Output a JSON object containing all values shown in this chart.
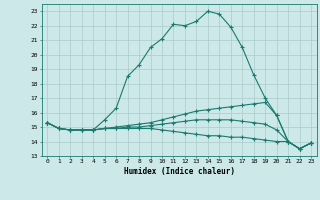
{
  "xlabel": "Humidex (Indice chaleur)",
  "bg_color": "#cce8e8",
  "grid_color": "#aacccc",
  "line_color": "#1a7a6e",
  "xlim": [
    -0.5,
    23.5
  ],
  "ylim": [
    13,
    23.5
  ],
  "yticks": [
    13,
    14,
    15,
    16,
    17,
    18,
    19,
    20,
    21,
    22,
    23
  ],
  "xticks": [
    0,
    1,
    2,
    3,
    4,
    5,
    6,
    7,
    8,
    9,
    10,
    11,
    12,
    13,
    14,
    15,
    16,
    17,
    18,
    19,
    20,
    21,
    22,
    23
  ],
  "xtick_labels": [
    "0",
    "1",
    "2",
    "3",
    "4",
    "5",
    "6",
    "7",
    "8",
    "9",
    "10",
    "11",
    "12",
    "13",
    "14",
    "15",
    "16",
    "17",
    "18",
    "19",
    "20",
    "21",
    "22",
    "23"
  ],
  "series": [
    [
      15.3,
      14.9,
      14.8,
      14.8,
      14.8,
      15.5,
      16.3,
      18.5,
      19.3,
      20.5,
      21.1,
      22.1,
      22.0,
      22.3,
      23.0,
      22.8,
      21.9,
      20.5,
      18.6,
      17.0,
      15.8,
      14.0,
      13.5,
      13.9
    ],
    [
      15.3,
      14.9,
      14.8,
      14.8,
      14.8,
      14.9,
      15.0,
      15.1,
      15.2,
      15.3,
      15.5,
      15.7,
      15.9,
      16.1,
      16.2,
      16.3,
      16.4,
      16.5,
      16.6,
      16.7,
      15.8,
      14.0,
      13.5,
      13.9
    ],
    [
      15.3,
      14.9,
      14.8,
      14.8,
      14.8,
      14.9,
      14.9,
      15.0,
      15.0,
      15.1,
      15.2,
      15.3,
      15.4,
      15.5,
      15.5,
      15.5,
      15.5,
      15.4,
      15.3,
      15.2,
      14.8,
      14.0,
      13.5,
      13.9
    ],
    [
      15.3,
      14.9,
      14.8,
      14.8,
      14.8,
      14.9,
      14.9,
      14.9,
      14.9,
      14.9,
      14.8,
      14.7,
      14.6,
      14.5,
      14.4,
      14.4,
      14.3,
      14.3,
      14.2,
      14.1,
      14.0,
      14.0,
      13.5,
      13.9
    ]
  ]
}
